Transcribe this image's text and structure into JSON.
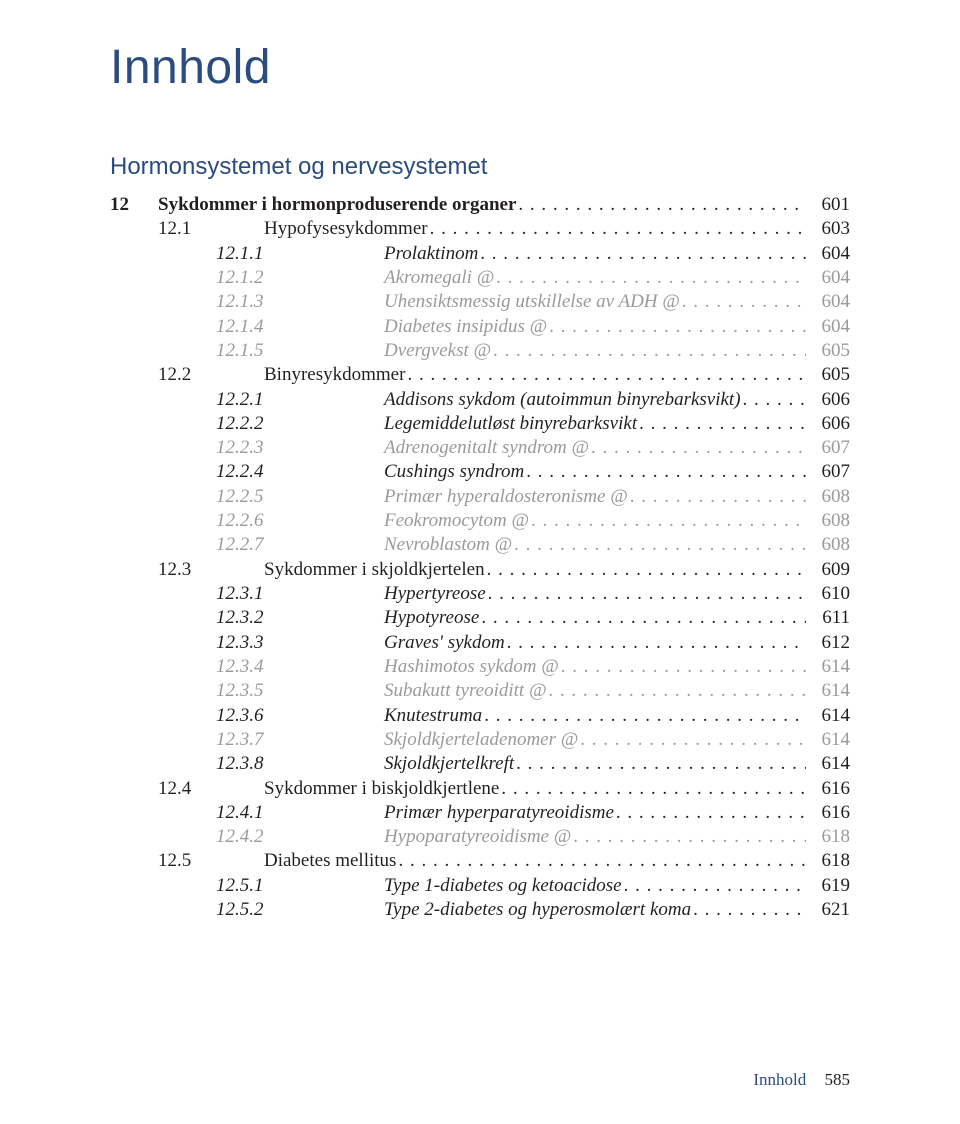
{
  "colors": {
    "heading": "#2b4c7e",
    "body": "#231f20",
    "muted": "#9a9a9a",
    "background": "#ffffff"
  },
  "typography": {
    "title_fontsize": 48,
    "section_heading_fontsize": 24,
    "body_fontsize": 19,
    "line_height": 1.28,
    "title_font": "Helvetica Neue",
    "body_font": "Georgia"
  },
  "page_title": "Innhold",
  "section_heading": "Hormonsystemet og nervesystemet",
  "toc": [
    {
      "level": "chap",
      "num": "12",
      "title": "Sykdommer i hormonproduserende organer",
      "page": "601",
      "muted": false
    },
    {
      "level": "sec",
      "num": "12.1",
      "title": "Hypofysesykdommer",
      "page": "603",
      "muted": false
    },
    {
      "level": "sub",
      "num": "12.1.1",
      "title": "Prolaktinom",
      "page": "604",
      "muted": false
    },
    {
      "level": "sub",
      "num": "12.1.2",
      "title": "Akromegali @",
      "page": "604",
      "muted": true
    },
    {
      "level": "sub",
      "num": "12.1.3",
      "title": "Uhensiktsmessig utskillelse av ADH @",
      "page": "604",
      "muted": true
    },
    {
      "level": "sub",
      "num": "12.1.4",
      "title": "Diabetes insipidus @",
      "page": "604",
      "muted": true
    },
    {
      "level": "sub",
      "num": "12.1.5",
      "title": "Dvergvekst @",
      "page": "605",
      "muted": true
    },
    {
      "level": "sec",
      "num": "12.2",
      "title": "Binyresykdommer",
      "page": "605",
      "muted": false
    },
    {
      "level": "sub",
      "num": "12.2.1",
      "title": "Addisons sykdom (autoimmun binyrebarksvikt)",
      "page": "606",
      "muted": false
    },
    {
      "level": "sub",
      "num": "12.2.2",
      "title": "Legemiddelutløst binyrebarksvikt",
      "page": "606",
      "muted": false
    },
    {
      "level": "sub",
      "num": "12.2.3",
      "title": "Adrenogenitalt syndrom @",
      "page": "607",
      "muted": true
    },
    {
      "level": "sub",
      "num": "12.2.4",
      "title": "Cushings syndrom",
      "page": "607",
      "muted": false
    },
    {
      "level": "sub",
      "num": "12.2.5",
      "title": "Primær hyperaldosteronisme @",
      "page": "608",
      "muted": true
    },
    {
      "level": "sub",
      "num": "12.2.6",
      "title": "Feokromocytom @",
      "page": "608",
      "muted": true
    },
    {
      "level": "sub",
      "num": "12.2.7",
      "title": "Nevroblastom @",
      "page": "608",
      "muted": true
    },
    {
      "level": "sec",
      "num": "12.3",
      "title": "Sykdommer i skjoldkjertelen",
      "page": "609",
      "muted": false
    },
    {
      "level": "sub",
      "num": "12.3.1",
      "title": "Hypertyreose",
      "page": "610",
      "muted": false
    },
    {
      "level": "sub",
      "num": "12.3.2",
      "title": "Hypotyreose",
      "page": "611",
      "muted": false
    },
    {
      "level": "sub",
      "num": "12.3.3",
      "title": "Graves' sykdom",
      "page": "612",
      "muted": false
    },
    {
      "level": "sub",
      "num": "12.3.4",
      "title": "Hashimotos sykdom @",
      "page": "614",
      "muted": true
    },
    {
      "level": "sub",
      "num": "12.3.5",
      "title": "Subakutt tyreoiditt @",
      "page": "614",
      "muted": true
    },
    {
      "level": "sub",
      "num": "12.3.6",
      "title": "Knutestruma",
      "page": "614",
      "muted": false
    },
    {
      "level": "sub",
      "num": "12.3.7",
      "title": "Skjoldkjerteladenomer @",
      "page": "614",
      "muted": true
    },
    {
      "level": "sub",
      "num": "12.3.8",
      "title": "Skjoldkjertelkreft",
      "page": "614",
      "muted": false
    },
    {
      "level": "sec",
      "num": "12.4",
      "title": "Sykdommer i biskjoldkjertlene",
      "page": "616",
      "muted": false
    },
    {
      "level": "sub",
      "num": "12.4.1",
      "title": "Primær hyperparatyreoidisme",
      "page": "616",
      "muted": false
    },
    {
      "level": "sub",
      "num": "12.4.2",
      "title": "Hypoparatyreoidisme @",
      "page": "618",
      "muted": true
    },
    {
      "level": "sec",
      "num": "12.5",
      "title": "Diabetes mellitus",
      "page": "618",
      "muted": false
    },
    {
      "level": "sub",
      "num": "12.5.1",
      "title": "Type 1-diabetes og ketoacidose",
      "page": "619",
      "muted": false
    },
    {
      "level": "sub",
      "num": "12.5.2",
      "title": "Type 2-diabetes og hyperosmolært koma",
      "page": "621",
      "muted": false
    }
  ],
  "footer": {
    "label": "Innhold",
    "page": "585"
  }
}
